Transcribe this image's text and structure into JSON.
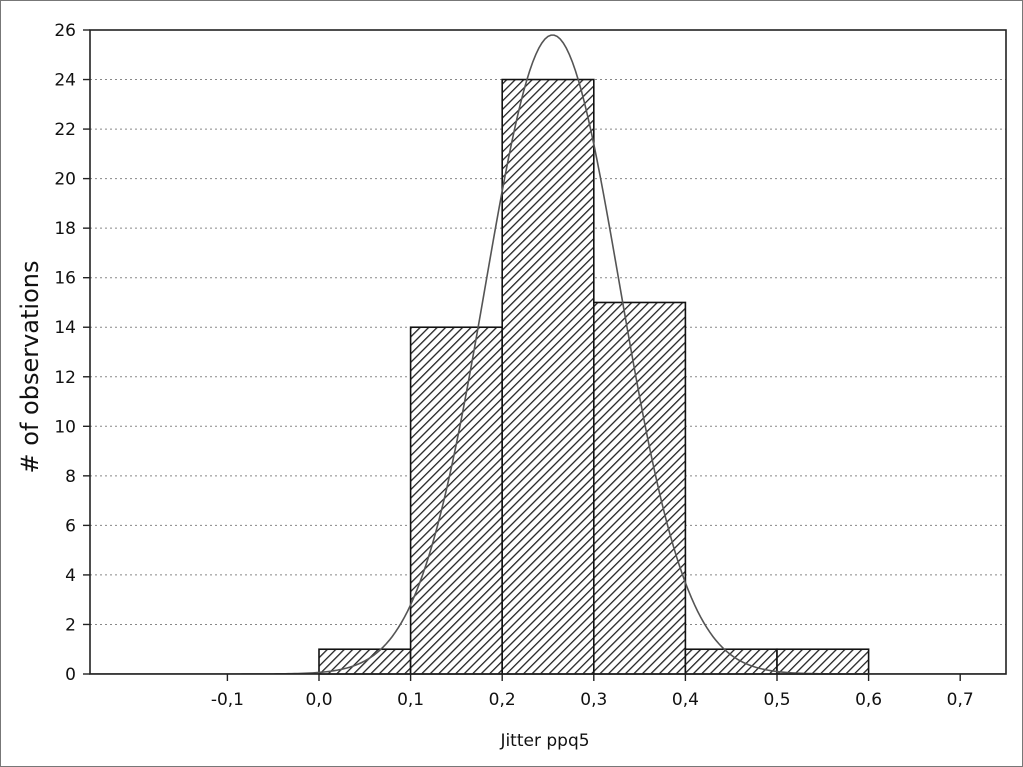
{
  "chart_data": {
    "type": "bar",
    "title": "",
    "xlabel": "Jitter ppq5",
    "ylabel": "# of observations",
    "bins": [
      {
        "from": 0.0,
        "to": 0.1,
        "count": 1
      },
      {
        "from": 0.1,
        "to": 0.2,
        "count": 14
      },
      {
        "from": 0.2,
        "to": 0.3,
        "count": 24
      },
      {
        "from": 0.3,
        "to": 0.4,
        "count": 15
      },
      {
        "from": 0.4,
        "to": 0.5,
        "count": 1
      },
      {
        "from": 0.5,
        "to": 0.6,
        "count": 1
      }
    ],
    "fitted_normal_curve": {
      "mean": 0.255,
      "sd": 0.0735,
      "peak": 25.8
    },
    "xlim": [
      -0.25,
      0.75
    ],
    "ylim": [
      0,
      26
    ],
    "x_ticks": [
      -0.1,
      0.0,
      0.1,
      0.2,
      0.3,
      0.4,
      0.5,
      0.6,
      0.7
    ],
    "x_tick_labels": [
      "-0,1",
      "0,0",
      "0,1",
      "0,2",
      "0,3",
      "0,4",
      "0,5",
      "0,6",
      "0,7"
    ],
    "y_ticks": [
      0,
      2,
      4,
      6,
      8,
      10,
      12,
      14,
      16,
      18,
      20,
      22,
      24,
      26
    ],
    "y_tick_labels": [
      "0",
      "2",
      "4",
      "6",
      "8",
      "10",
      "12",
      "14",
      "16",
      "18",
      "20",
      "22",
      "24",
      "26"
    ],
    "grid": "horizontal dotted",
    "bar_fill": "diagonal hatch",
    "colors": {
      "bar_stroke": "#111111",
      "hatch": "#222222",
      "curve": "#555555",
      "grid": "#888888",
      "axis": "#222222"
    }
  }
}
